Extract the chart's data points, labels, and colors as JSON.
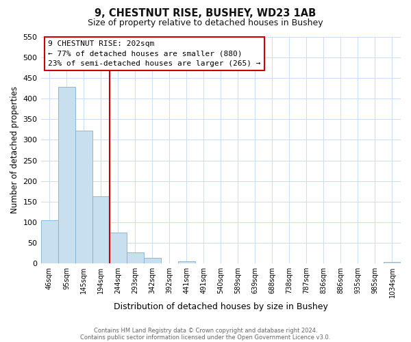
{
  "title": "9, CHESTNUT RISE, BUSHEY, WD23 1AB",
  "subtitle": "Size of property relative to detached houses in Bushey",
  "xlabel": "Distribution of detached houses by size in Bushey",
  "ylabel": "Number of detached properties",
  "bin_labels": [
    "46sqm",
    "95sqm",
    "145sqm",
    "194sqm",
    "244sqm",
    "293sqm",
    "342sqm",
    "392sqm",
    "441sqm",
    "491sqm",
    "540sqm",
    "589sqm",
    "639sqm",
    "688sqm",
    "738sqm",
    "787sqm",
    "836sqm",
    "886sqm",
    "935sqm",
    "985sqm",
    "1034sqm"
  ],
  "bar_values": [
    105,
    428,
    322,
    162,
    75,
    27,
    13,
    0,
    5,
    0,
    0,
    0,
    0,
    0,
    0,
    0,
    0,
    0,
    0,
    0,
    4
  ],
  "bar_color": "#c8dff0",
  "bar_edge_color": "#7fb0d0",
  "reference_line_x": 3.5,
  "reference_line_color": "#cc0000",
  "ylim": [
    0,
    550
  ],
  "yticks": [
    0,
    50,
    100,
    150,
    200,
    250,
    300,
    350,
    400,
    450,
    500,
    550
  ],
  "annotation_title": "9 CHESTNUT RISE: 202sqm",
  "annotation_line1": "← 77% of detached houses are smaller (880)",
  "annotation_line2": "23% of semi-detached houses are larger (265) →",
  "annotation_box_color": "#ffffff",
  "annotation_box_edge": "#cc0000",
  "footer_line1": "Contains HM Land Registry data © Crown copyright and database right 2024.",
  "footer_line2": "Contains public sector information licensed under the Open Government Licence v3.0.",
  "background_color": "#ffffff",
  "grid_color": "#ccddf0"
}
